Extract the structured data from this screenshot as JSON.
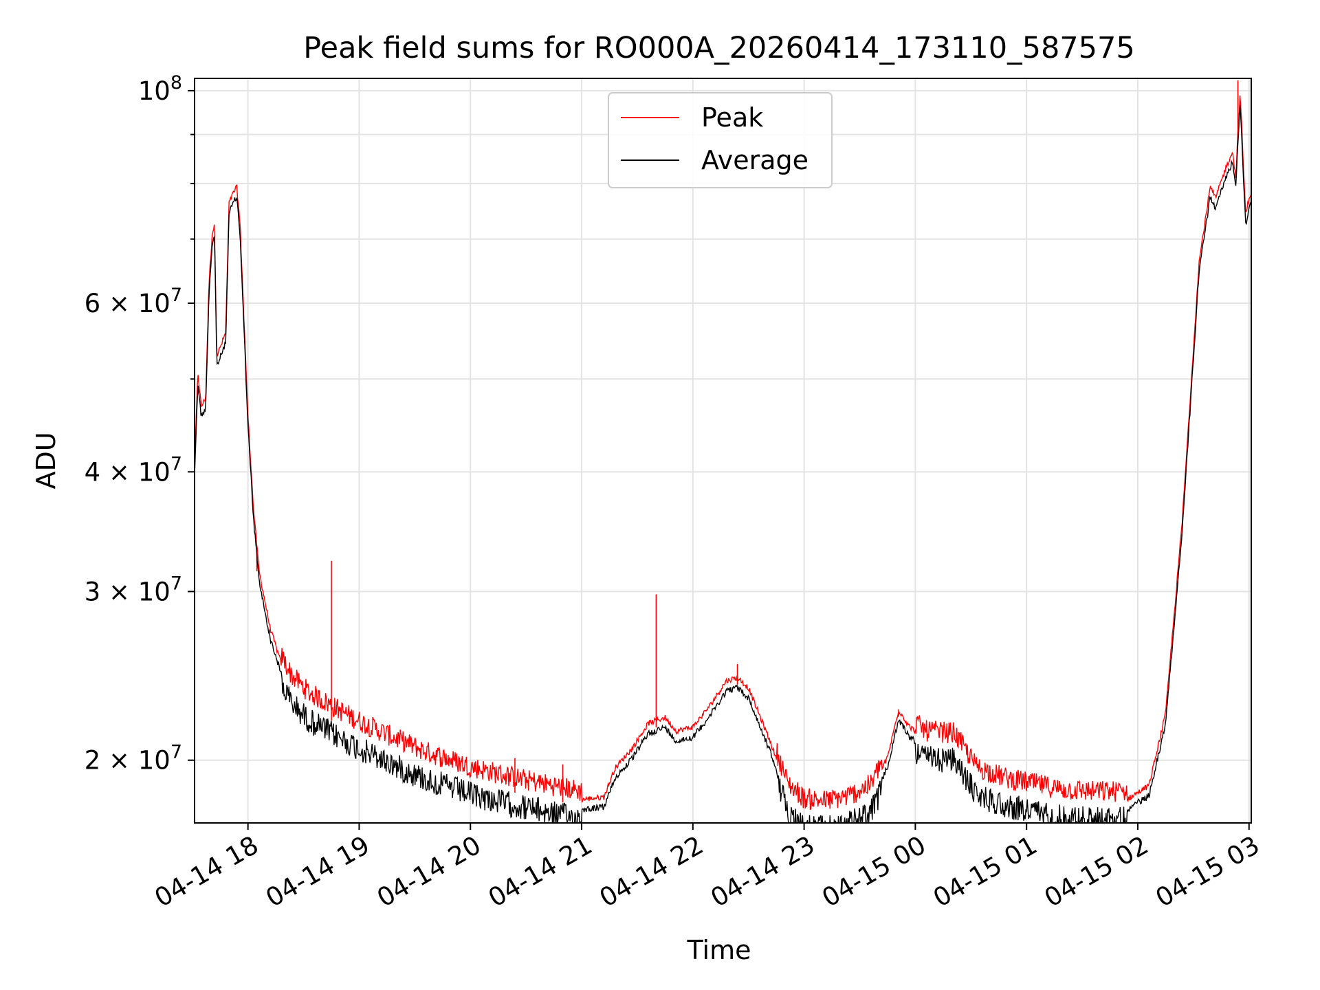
{
  "chart_data": {
    "type": "line",
    "title": "Peak field sums for RO000A_20260414_173110_587575",
    "xlabel": "Time",
    "ylabel": "ADU",
    "yscale": "log",
    "ylim": [
      17200000,
      103000000
    ],
    "xlim_hours": [
      17.52,
      27.02
    ],
    "grid": true,
    "legend_position": "upper center",
    "x_ticks": [
      {
        "hour": 18,
        "label": "04-14 18"
      },
      {
        "hour": 19,
        "label": "04-14 19"
      },
      {
        "hour": 20,
        "label": "04-14 20"
      },
      {
        "hour": 21,
        "label": "04-14 21"
      },
      {
        "hour": 22,
        "label": "04-14 22"
      },
      {
        "hour": 23,
        "label": "04-14 23"
      },
      {
        "hour": 24,
        "label": "04-15 00"
      },
      {
        "hour": 25,
        "label": "04-15 01"
      },
      {
        "hour": 26,
        "label": "04-15 02"
      },
      {
        "hour": 27,
        "label": "04-15 03"
      }
    ],
    "y_ticks": [
      {
        "value": 20000000,
        "mantissa": "2",
        "exponent": "7"
      },
      {
        "value": 30000000,
        "mantissa": "3",
        "exponent": "7"
      },
      {
        "value": 40000000,
        "mantissa": "4",
        "exponent": "7"
      },
      {
        "value": 60000000,
        "mantissa": "6",
        "exponent": "7"
      },
      {
        "value": 100000000,
        "mantissa": "",
        "exponent": "8"
      }
    ],
    "y_minor_ticks": [
      50000000,
      70000000,
      80000000,
      90000000
    ],
    "series": [
      {
        "name": "Peak",
        "color": "#ff0000",
        "spikes": [
          {
            "hour": 18.08,
            "value": 31500000
          },
          {
            "hour": 18.75,
            "value": 32300000
          },
          {
            "hour": 20.4,
            "value": 20100000
          },
          {
            "hour": 20.83,
            "value": 19800000
          },
          {
            "hour": 21.67,
            "value": 29800000
          },
          {
            "hour": 22.4,
            "value": 25200000
          },
          {
            "hour": 23.85,
            "value": 22600000
          },
          {
            "hour": 26.9,
            "value": 102500000
          }
        ]
      },
      {
        "name": "Average",
        "color": "#000000",
        "points": [
          [
            17.52,
            40000000
          ],
          [
            17.55,
            50000000
          ],
          [
            17.58,
            46000000
          ],
          [
            17.62,
            47000000
          ],
          [
            17.65,
            62000000
          ],
          [
            17.68,
            70000000
          ],
          [
            17.7,
            71000000
          ],
          [
            17.72,
            52000000
          ],
          [
            17.75,
            53000000
          ],
          [
            17.8,
            55000000
          ],
          [
            17.83,
            75000000
          ],
          [
            17.87,
            77000000
          ],
          [
            17.9,
            78000000
          ],
          [
            17.93,
            71000000
          ],
          [
            18.0,
            45000000
          ],
          [
            18.05,
            36000000
          ],
          [
            18.1,
            31000000
          ],
          [
            18.2,
            27000000
          ],
          [
            18.3,
            24800000
          ],
          [
            18.4,
            23600000
          ],
          [
            18.55,
            22700000
          ],
          [
            18.75,
            22000000
          ],
          [
            19.0,
            21200000
          ],
          [
            19.3,
            20400000
          ],
          [
            19.6,
            19700000
          ],
          [
            20.0,
            19000000
          ],
          [
            20.4,
            18500000
          ],
          [
            20.8,
            18100000
          ],
          [
            21.0,
            17900000
          ],
          [
            21.2,
            18000000
          ],
          [
            21.3,
            19300000
          ],
          [
            21.45,
            20200000
          ],
          [
            21.6,
            21500000
          ],
          [
            21.75,
            21800000
          ],
          [
            21.85,
            21100000
          ],
          [
            22.0,
            21300000
          ],
          [
            22.15,
            22400000
          ],
          [
            22.3,
            23800000
          ],
          [
            22.4,
            24000000
          ],
          [
            22.5,
            23400000
          ],
          [
            22.7,
            20500000
          ],
          [
            22.85,
            18300000
          ],
          [
            23.0,
            17600000
          ],
          [
            23.2,
            17500000
          ],
          [
            23.4,
            17700000
          ],
          [
            23.6,
            18200000
          ],
          [
            23.75,
            19800000
          ],
          [
            23.85,
            22200000
          ],
          [
            23.95,
            21300000
          ],
          [
            24.1,
            20700000
          ],
          [
            24.35,
            20600000
          ],
          [
            24.55,
            19000000
          ],
          [
            24.8,
            18500000
          ],
          [
            25.0,
            18300000
          ],
          [
            25.3,
            18000000
          ],
          [
            25.6,
            17900000
          ],
          [
            25.9,
            17900000
          ],
          [
            26.1,
            18500000
          ],
          [
            26.25,
            22000000
          ],
          [
            26.4,
            35000000
          ],
          [
            26.55,
            65000000
          ],
          [
            26.65,
            78000000
          ],
          [
            26.7,
            76000000
          ],
          [
            26.78,
            81000000
          ],
          [
            26.85,
            85000000
          ],
          [
            26.88,
            80000000
          ],
          [
            26.92,
            98000000
          ],
          [
            26.95,
            82000000
          ],
          [
            26.97,
            73000000
          ],
          [
            27.0,
            76000000
          ],
          [
            27.02,
            77000000
          ]
        ]
      }
    ]
  }
}
